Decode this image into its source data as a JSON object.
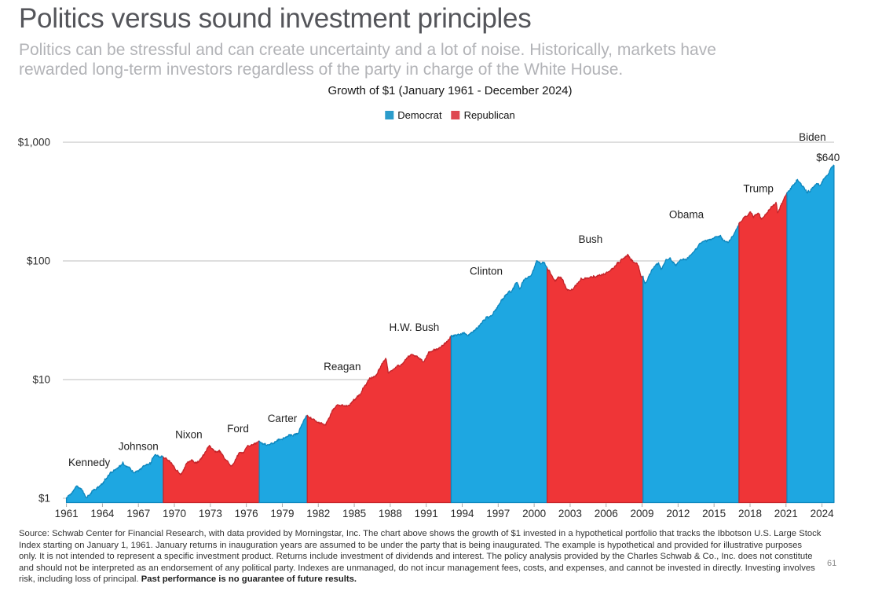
{
  "header": {
    "title": "Politics versus sound investment principles",
    "subtitle_lines": [
      "Politics can be stressful and can create uncertainty and a lot of noise. Historically, markets have",
      "rewarded long-term investors regardless of the party in charge of the White House."
    ]
  },
  "footnote": {
    "text": "Source: Schwab Center for Financial Research, with data provided by Morningstar, Inc. The chart above shows the growth of $1 invested in a hypothetical portfolio that tracks the Ibbotson U.S. Large Stock Index starting on January 1, 1961. January returns in inauguration years are assumed to be under the party that is being inaugurated. The example is hypothetical and provided for illustrative purposes only. It is not intended to represent a specific investment product. Returns include investment of dividends and interest. The policy analysis provided by the Charles Schwab & Co., Inc. does not constitute and should not be interpreted as an endorsement of any political party. Indexes are unmanaged, do not incur management fees, costs, and expenses, and cannot be invested in directly. Investing involves risk, including loss of principal. ",
    "bold_text": "Past performance is no guarantee of future results."
  },
  "page": {
    "page_number": "61"
  },
  "chart_data": {
    "type": "area",
    "title": "Growth of $1 (January 1961 - December 2024)",
    "y_axis": {
      "scale": "log",
      "ticks": [
        {
          "label": "$1",
          "value": 1
        },
        {
          "label": "$10",
          "value": 10
        },
        {
          "label": "$100",
          "value": 100
        },
        {
          "label": "$1,000",
          "value": 1000
        }
      ]
    },
    "x_axis": {
      "start_year": 1961,
      "end_year": 2025,
      "tick_years": [
        1961,
        1964,
        1967,
        1970,
        1973,
        1976,
        1979,
        1982,
        1985,
        1988,
        1991,
        1994,
        1997,
        2000,
        2003,
        2006,
        2009,
        2012,
        2015,
        2018,
        2021,
        2024
      ]
    },
    "legend": [
      {
        "label": "Democrat",
        "color": "#2B9CCB"
      },
      {
        "label": "Republican",
        "color": "#DE4750"
      }
    ],
    "colors": {
      "democrat_fill": "#1EA7E1",
      "democrat_edge": "#0E87BE",
      "republican_fill": "#EF3537",
      "republican_edge": "#C5242A",
      "gridline": "#cbcbcb",
      "tick": "#a8a8a8",
      "axis_text": "#2a2a2a",
      "annotation_text": "#1f1f1f"
    },
    "segments": [
      {
        "party": "D",
        "start": 1961.0,
        "end": 1969.08
      },
      {
        "party": "R",
        "start": 1969.08,
        "end": 1977.08
      },
      {
        "party": "D",
        "start": 1977.08,
        "end": 1981.08
      },
      {
        "party": "R",
        "start": 1981.08,
        "end": 1993.08
      },
      {
        "party": "D",
        "start": 1993.08,
        "end": 2001.08
      },
      {
        "party": "R",
        "start": 2001.08,
        "end": 2009.08
      },
      {
        "party": "D",
        "start": 2009.08,
        "end": 2017.08
      },
      {
        "party": "R",
        "start": 2017.08,
        "end": 2021.08
      },
      {
        "party": "D",
        "start": 2021.08,
        "end": 2025.0
      }
    ],
    "annotations": [
      {
        "text": "Kennedy",
        "year": 1962.9,
        "value": 2.0
      },
      {
        "text": "Johnson",
        "year": 1967.0,
        "value": 2.74
      },
      {
        "text": "Nixon",
        "year": 1971.2,
        "value": 3.45
      },
      {
        "text": "Ford",
        "year": 1975.3,
        "value": 3.85
      },
      {
        "text": "Carter",
        "year": 1979.0,
        "value": 4.7
      },
      {
        "text": "Reagan",
        "year": 1984.0,
        "value": 12.9
      },
      {
        "text": "H.W. Bush",
        "year": 1990.0,
        "value": 27.5
      },
      {
        "text": "Clinton",
        "year": 1996.0,
        "value": 82
      },
      {
        "text": "Bush",
        "year": 2004.7,
        "value": 152
      },
      {
        "text": "Obama",
        "year": 2012.7,
        "value": 246
      },
      {
        "text": "Trump",
        "year": 2018.7,
        "value": 408
      },
      {
        "text": "Biden",
        "year": 2023.2,
        "value": 1100
      }
    ],
    "final_value_label": {
      "text": "$640",
      "year": 2024.5,
      "value": 740
    },
    "series_keypoints": [
      [
        1961.0,
        1.0
      ],
      [
        1961.5,
        1.14
      ],
      [
        1961.85,
        1.28
      ],
      [
        1962.3,
        1.17
      ],
      [
        1962.65,
        1.01
      ],
      [
        1963.1,
        1.12
      ],
      [
        1963.9,
        1.3
      ],
      [
        1964.6,
        1.6
      ],
      [
        1965.7,
        1.96
      ],
      [
        1966.2,
        1.82
      ],
      [
        1966.65,
        1.62
      ],
      [
        1967.5,
        1.88
      ],
      [
        1968.0,
        1.95
      ],
      [
        1968.35,
        2.32
      ],
      [
        1968.7,
        2.25
      ],
      [
        1969.08,
        2.2
      ],
      [
        1969.6,
        2.05
      ],
      [
        1970.0,
        1.85
      ],
      [
        1970.5,
        1.55
      ],
      [
        1971.0,
        1.95
      ],
      [
        1971.35,
        2.1
      ],
      [
        1971.8,
        1.98
      ],
      [
        1972.3,
        2.2
      ],
      [
        1972.9,
        2.8
      ],
      [
        1973.4,
        2.45
      ],
      [
        1973.75,
        2.5
      ],
      [
        1974.1,
        2.25
      ],
      [
        1974.8,
        1.85
      ],
      [
        1975.4,
        2.45
      ],
      [
        1975.75,
        2.42
      ],
      [
        1976.15,
        2.78
      ],
      [
        1976.8,
        2.88
      ],
      [
        1977.08,
        3.0
      ],
      [
        1977.7,
        2.82
      ],
      [
        1978.25,
        2.9
      ],
      [
        1978.6,
        3.05
      ],
      [
        1979.1,
        3.2
      ],
      [
        1979.8,
        3.45
      ],
      [
        1980.3,
        3.5
      ],
      [
        1980.95,
        4.88
      ],
      [
        1981.08,
        4.9
      ],
      [
        1981.6,
        4.6
      ],
      [
        1982.0,
        4.35
      ],
      [
        1982.6,
        4.12
      ],
      [
        1983.2,
        5.5
      ],
      [
        1983.65,
        6.1
      ],
      [
        1984.5,
        6.0
      ],
      [
        1985.5,
        7.6
      ],
      [
        1986.3,
        10.3
      ],
      [
        1986.75,
        10.6
      ],
      [
        1987.2,
        13.0
      ],
      [
        1987.63,
        15.2
      ],
      [
        1987.85,
        11.4
      ],
      [
        1988.3,
        12.3
      ],
      [
        1988.85,
        13.3
      ],
      [
        1989.08,
        13.9
      ],
      [
        1989.8,
        16.4
      ],
      [
        1990.2,
        15.7
      ],
      [
        1990.8,
        14.0
      ],
      [
        1991.2,
        17.0
      ],
      [
        1991.6,
        17.6
      ],
      [
        1992.1,
        18.6
      ],
      [
        1992.7,
        20.8
      ],
      [
        1993.08,
        23.0
      ],
      [
        1993.6,
        23.8
      ],
      [
        1994.15,
        24.6
      ],
      [
        1994.5,
        23.4
      ],
      [
        1995.0,
        25.5
      ],
      [
        1995.6,
        29.5
      ],
      [
        1996.05,
        33.5
      ],
      [
        1996.55,
        35.5
      ],
      [
        1997.0,
        42.0
      ],
      [
        1997.65,
        52.0
      ],
      [
        1998.2,
        57.0
      ],
      [
        1998.55,
        66.0
      ],
      [
        1998.8,
        58.0
      ],
      [
        1999.1,
        68.0
      ],
      [
        1999.45,
        72.0
      ],
      [
        1999.8,
        77.0
      ],
      [
        2000.2,
        99.0
      ],
      [
        2000.55,
        95.0
      ],
      [
        2000.85,
        97.0
      ],
      [
        2001.08,
        86.0
      ],
      [
        2001.45,
        77.0
      ],
      [
        2001.72,
        67.0
      ],
      [
        2002.0,
        74.0
      ],
      [
        2002.3,
        72.0
      ],
      [
        2002.78,
        56.0
      ],
      [
        2003.2,
        58.0
      ],
      [
        2003.9,
        70.0
      ],
      [
        2004.6,
        72.0
      ],
      [
        2005.1,
        74.0
      ],
      [
        2005.9,
        78.0
      ],
      [
        2006.5,
        86.0
      ],
      [
        2007.1,
        99.0
      ],
      [
        2007.8,
        112.0
      ],
      [
        2008.25,
        98.0
      ],
      [
        2008.65,
        94.0
      ],
      [
        2008.92,
        72.0
      ],
      [
        2009.08,
        74.0
      ],
      [
        2009.25,
        64.0
      ],
      [
        2009.6,
        76.0
      ],
      [
        2009.95,
        88.0
      ],
      [
        2010.35,
        96.0
      ],
      [
        2010.6,
        86.0
      ],
      [
        2011.0,
        100.0
      ],
      [
        2011.35,
        106.0
      ],
      [
        2011.8,
        92.0
      ],
      [
        2012.2,
        102.0
      ],
      [
        2012.65,
        104.0
      ],
      [
        2012.95,
        108.0
      ],
      [
        2013.5,
        126.0
      ],
      [
        2013.95,
        145.0
      ],
      [
        2014.55,
        150.0
      ],
      [
        2014.95,
        155.0
      ],
      [
        2015.5,
        163.0
      ],
      [
        2015.85,
        148.0
      ],
      [
        2016.15,
        145.0
      ],
      [
        2016.55,
        162.0
      ],
      [
        2016.85,
        182.0
      ],
      [
        2017.08,
        210.0
      ],
      [
        2017.6,
        232.0
      ],
      [
        2018.05,
        258.0
      ],
      [
        2018.3,
        238.0
      ],
      [
        2018.7,
        252.0
      ],
      [
        2018.95,
        224.0
      ],
      [
        2019.35,
        252.0
      ],
      [
        2019.95,
        295.0
      ],
      [
        2020.18,
        308.0
      ],
      [
        2020.3,
        252.0
      ],
      [
        2020.55,
        290.0
      ],
      [
        2020.9,
        352.0
      ],
      [
        2021.08,
        377.0
      ],
      [
        2021.5,
        420.0
      ],
      [
        2021.95,
        485.0
      ],
      [
        2022.2,
        442.0
      ],
      [
        2022.45,
        415.0
      ],
      [
        2022.78,
        375.0
      ],
      [
        2023.1,
        405.0
      ],
      [
        2023.55,
        452.0
      ],
      [
        2023.82,
        432.0
      ],
      [
        2024.1,
        478.0
      ],
      [
        2024.4,
        525.0
      ],
      [
        2024.6,
        555.0
      ],
      [
        2024.75,
        600.0
      ],
      [
        2024.95,
        640.0
      ],
      [
        2025.0,
        640.0
      ]
    ]
  }
}
